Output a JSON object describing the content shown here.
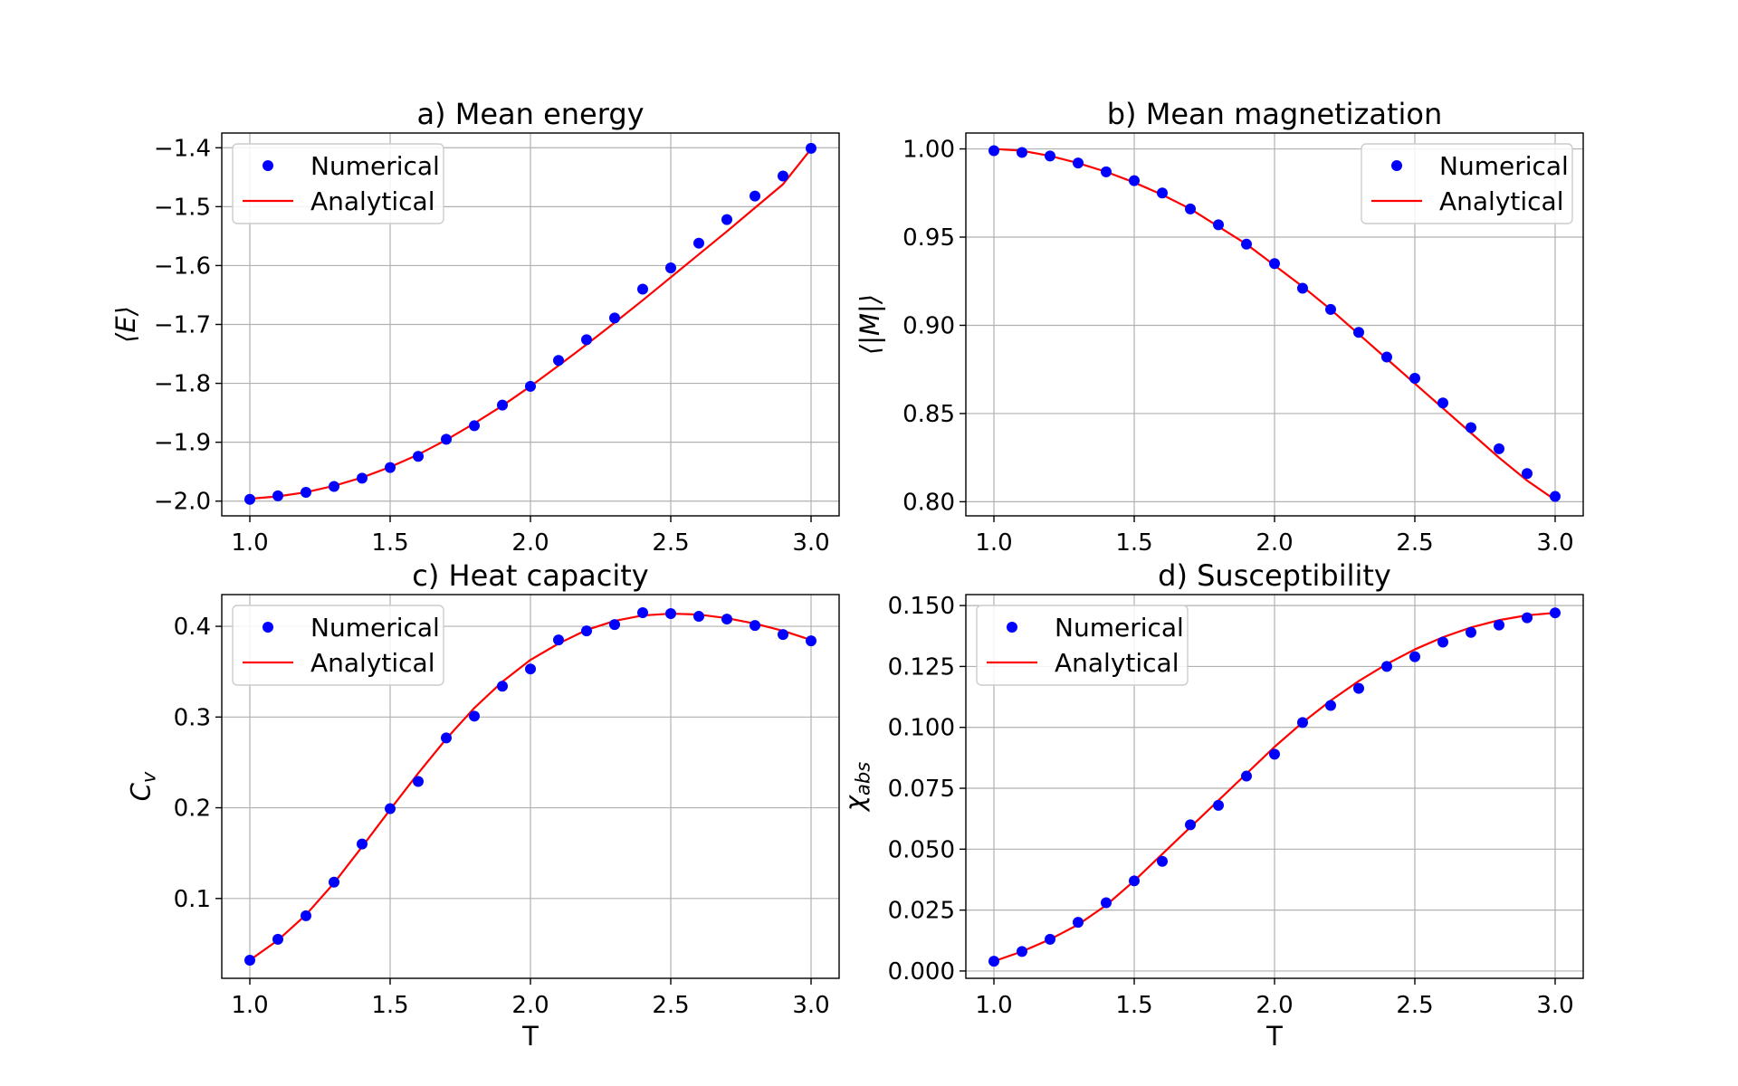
{
  "figure": {
    "background": "#ffffff"
  },
  "colors": {
    "numerical": "#0000ff",
    "analytical": "#ff0000",
    "grid": "#b0b0b0"
  },
  "chart_data": [
    {
      "id": "a",
      "type": "scatter+line",
      "title": "a) Mean energy",
      "xlabel": "",
      "ylabel": "⟨E⟩",
      "ylabel_main": "⟨E⟩",
      "ylabel_sub": "",
      "xlim": [
        0.9,
        3.1
      ],
      "ylim": [
        -2.025,
        -1.375
      ],
      "xticks": [
        1.0,
        1.5,
        2.0,
        2.5,
        3.0
      ],
      "xtick_labels": [
        "1.0",
        "1.5",
        "2.0",
        "2.5",
        "3.0"
      ],
      "yticks": [
        -2.0,
        -1.9,
        -1.8,
        -1.7,
        -1.6,
        -1.5,
        -1.4
      ],
      "ytick_labels": [
        "−2.0",
        "−1.9",
        "−1.8",
        "−1.7",
        "−1.6",
        "−1.5",
        "−1.4"
      ],
      "grid": true,
      "legend_position": "upper-left",
      "legend": [
        "Numerical",
        "Analytical"
      ],
      "series": [
        {
          "name": "Numerical",
          "kind": "scatter",
          "x": [
            1.0,
            1.1,
            1.2,
            1.3,
            1.4,
            1.5,
            1.6,
            1.7,
            1.8,
            1.9,
            2.0,
            2.1,
            2.2,
            2.3,
            2.4,
            2.5,
            2.6,
            2.7,
            2.8,
            2.9,
            3.0
          ],
          "y": [
            -1.997,
            -1.991,
            -1.985,
            -1.975,
            -1.961,
            -1.943,
            -1.924,
            -1.895,
            -1.872,
            -1.837,
            -1.805,
            -1.761,
            -1.726,
            -1.689,
            -1.64,
            -1.604,
            -1.562,
            -1.522,
            -1.482,
            -1.448,
            -1.401
          ]
        },
        {
          "name": "Analytical",
          "kind": "line",
          "x": [
            1.0,
            1.1,
            1.2,
            1.3,
            1.4,
            1.5,
            1.6,
            1.7,
            1.8,
            1.9,
            2.0,
            2.1,
            2.2,
            2.3,
            2.4,
            2.5,
            2.6,
            2.7,
            2.8,
            2.9,
            3.0
          ],
          "y": [
            -1.996,
            -1.992,
            -1.985,
            -1.974,
            -1.96,
            -1.942,
            -1.921,
            -1.896,
            -1.868,
            -1.838,
            -1.805,
            -1.77,
            -1.734,
            -1.697,
            -1.659,
            -1.62,
            -1.581,
            -1.542,
            -1.502,
            -1.462,
            -1.402
          ]
        }
      ]
    },
    {
      "id": "b",
      "type": "scatter+line",
      "title": "b) Mean magnetization",
      "xlabel": "",
      "ylabel": "⟨|M|⟩",
      "ylabel_main": "⟨|M|⟩",
      "ylabel_sub": "",
      "xlim": [
        0.9,
        3.1
      ],
      "ylim": [
        0.792,
        1.009
      ],
      "xticks": [
        1.0,
        1.5,
        2.0,
        2.5,
        3.0
      ],
      "xtick_labels": [
        "1.0",
        "1.5",
        "2.0",
        "2.5",
        "3.0"
      ],
      "yticks": [
        0.8,
        0.85,
        0.9,
        0.95,
        1.0
      ],
      "ytick_labels": [
        "0.80",
        "0.85",
        "0.90",
        "0.95",
        "1.00"
      ],
      "grid": true,
      "legend_position": "upper-right",
      "legend": [
        "Numerical",
        "Analytical"
      ],
      "series": [
        {
          "name": "Numerical",
          "kind": "scatter",
          "x": [
            1.0,
            1.1,
            1.2,
            1.3,
            1.4,
            1.5,
            1.6,
            1.7,
            1.8,
            1.9,
            2.0,
            2.1,
            2.2,
            2.3,
            2.4,
            2.5,
            2.6,
            2.7,
            2.8,
            2.9,
            3.0
          ],
          "y": [
            0.999,
            0.998,
            0.996,
            0.992,
            0.987,
            0.982,
            0.975,
            0.966,
            0.957,
            0.946,
            0.935,
            0.921,
            0.909,
            0.896,
            0.882,
            0.87,
            0.856,
            0.842,
            0.83,
            0.816,
            0.803
          ]
        },
        {
          "name": "Analytical",
          "kind": "line",
          "x": [
            1.0,
            1.1,
            1.2,
            1.3,
            1.4,
            1.5,
            1.6,
            1.7,
            1.8,
            1.9,
            2.0,
            2.1,
            2.2,
            2.3,
            2.4,
            2.5,
            2.6,
            2.7,
            2.8,
            2.9,
            3.0
          ],
          "y": [
            1.0,
            0.999,
            0.996,
            0.992,
            0.987,
            0.981,
            0.974,
            0.966,
            0.956,
            0.946,
            0.934,
            0.922,
            0.909,
            0.895,
            0.881,
            0.867,
            0.853,
            0.839,
            0.825,
            0.812,
            0.801
          ]
        }
      ]
    },
    {
      "id": "c",
      "type": "scatter+line",
      "title": "c) Heat capacity",
      "xlabel": "T",
      "ylabel": "C_v",
      "ylabel_main": "C",
      "ylabel_sub": "v",
      "xlim": [
        0.9,
        3.1
      ],
      "ylim": [
        0.012,
        0.435
      ],
      "xticks": [
        1.0,
        1.5,
        2.0,
        2.5,
        3.0
      ],
      "xtick_labels": [
        "1.0",
        "1.5",
        "2.0",
        "2.5",
        "3.0"
      ],
      "yticks": [
        0.1,
        0.2,
        0.3,
        0.4
      ],
      "ytick_labels": [
        "0.1",
        "0.2",
        "0.3",
        "0.4"
      ],
      "grid": true,
      "legend_position": "upper-left",
      "legend": [
        "Numerical",
        "Analytical"
      ],
      "series": [
        {
          "name": "Numerical",
          "kind": "scatter",
          "x": [
            1.0,
            1.1,
            1.2,
            1.3,
            1.4,
            1.5,
            1.6,
            1.7,
            1.8,
            1.9,
            2.0,
            2.1,
            2.2,
            2.3,
            2.4,
            2.5,
            2.6,
            2.7,
            2.8,
            2.9,
            3.0
          ],
          "y": [
            0.032,
            0.055,
            0.081,
            0.118,
            0.16,
            0.199,
            0.229,
            0.277,
            0.301,
            0.334,
            0.353,
            0.385,
            0.395,
            0.402,
            0.415,
            0.414,
            0.411,
            0.408,
            0.401,
            0.391,
            0.384
          ]
        },
        {
          "name": "Analytical",
          "kind": "line",
          "x": [
            1.0,
            1.1,
            1.2,
            1.3,
            1.4,
            1.5,
            1.6,
            1.7,
            1.8,
            1.9,
            2.0,
            2.1,
            2.2,
            2.3,
            2.4,
            2.5,
            2.6,
            2.7,
            2.8,
            2.9,
            3.0
          ],
          "y": [
            0.032,
            0.054,
            0.082,
            0.117,
            0.157,
            0.198,
            0.238,
            0.276,
            0.31,
            0.339,
            0.363,
            0.381,
            0.396,
            0.406,
            0.412,
            0.414,
            0.413,
            0.409,
            0.403,
            0.395,
            0.385
          ]
        }
      ]
    },
    {
      "id": "d",
      "type": "scatter+line",
      "title": "d) Susceptibility",
      "xlabel": "T",
      "ylabel": "χ_abs",
      "ylabel_main": "χ",
      "ylabel_sub": "abs",
      "xlim": [
        0.9,
        3.1
      ],
      "ylim": [
        -0.003,
        0.1545
      ],
      "xticks": [
        1.0,
        1.5,
        2.0,
        2.5,
        3.0
      ],
      "xtick_labels": [
        "1.0",
        "1.5",
        "2.0",
        "2.5",
        "3.0"
      ],
      "yticks": [
        0.0,
        0.025,
        0.05,
        0.075,
        0.1,
        0.125,
        0.15
      ],
      "ytick_labels": [
        "0.000",
        "0.025",
        "0.050",
        "0.075",
        "0.100",
        "0.125",
        "0.150"
      ],
      "grid": true,
      "legend_position": "upper-left",
      "legend": [
        "Numerical",
        "Analytical"
      ],
      "series": [
        {
          "name": "Numerical",
          "kind": "scatter",
          "x": [
            1.0,
            1.1,
            1.2,
            1.3,
            1.4,
            1.5,
            1.6,
            1.7,
            1.8,
            1.9,
            2.0,
            2.1,
            2.2,
            2.3,
            2.4,
            2.5,
            2.6,
            2.7,
            2.8,
            2.9,
            3.0
          ],
          "y": [
            0.004,
            0.008,
            0.013,
            0.02,
            0.028,
            0.037,
            0.045,
            0.06,
            0.068,
            0.08,
            0.089,
            0.102,
            0.109,
            0.116,
            0.125,
            0.129,
            0.135,
            0.139,
            0.142,
            0.145,
            0.147
          ]
        },
        {
          "name": "Analytical",
          "kind": "line",
          "x": [
            1.0,
            1.1,
            1.2,
            1.3,
            1.4,
            1.5,
            1.6,
            1.7,
            1.8,
            1.9,
            2.0,
            2.1,
            2.2,
            2.3,
            2.4,
            2.5,
            2.6,
            2.7,
            2.8,
            2.9,
            3.0
          ],
          "y": [
            0.004,
            0.008,
            0.013,
            0.019,
            0.027,
            0.037,
            0.048,
            0.059,
            0.07,
            0.081,
            0.092,
            0.102,
            0.111,
            0.119,
            0.126,
            0.132,
            0.137,
            0.141,
            0.144,
            0.146,
            0.147
          ]
        }
      ]
    }
  ]
}
